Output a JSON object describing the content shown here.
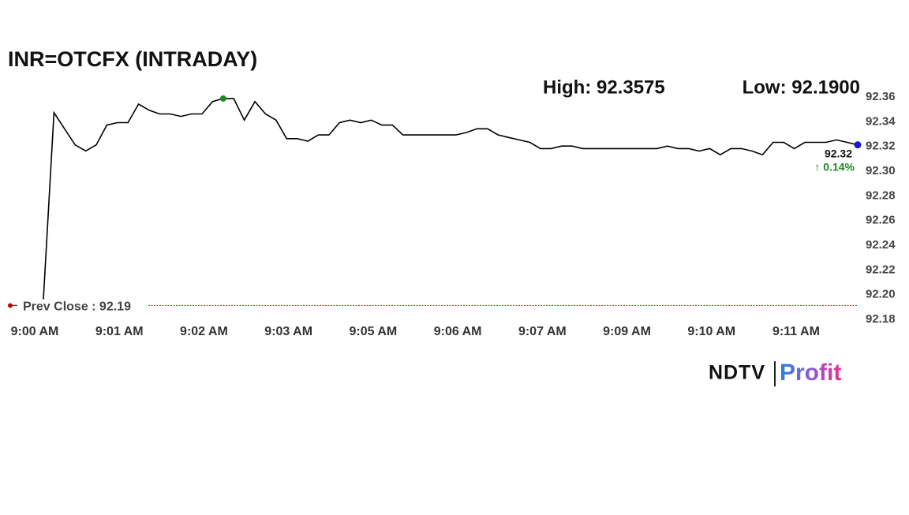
{
  "chart_data": {
    "type": "line",
    "title": "INR=OTCFX (INTRADAY)",
    "high_label": "High: 92.3575",
    "low_label": "Low: 92.1900",
    "categories": [
      "9:00 AM",
      null,
      null,
      null,
      null,
      null,
      null,
      null,
      "9:01 AM",
      null,
      null,
      null,
      null,
      null,
      null,
      null,
      "9:02 AM",
      null,
      null,
      null,
      null,
      null,
      null,
      null,
      "9:03 AM",
      null,
      null,
      null,
      null,
      null,
      null,
      null,
      "9:05 AM",
      null,
      null,
      null,
      null,
      null,
      null,
      null,
      "9:06 AM",
      null,
      null,
      null,
      null,
      null,
      null,
      null,
      "9:07 AM",
      null,
      null,
      null,
      null,
      null,
      null,
      null,
      "9:09 AM",
      null,
      null,
      null,
      null,
      null,
      null,
      null,
      "9:10 AM",
      null,
      null,
      null,
      null,
      null,
      null,
      null,
      "9:11 AM",
      null,
      null,
      null,
      null,
      null
    ],
    "values": [
      92.195,
      92.346,
      92.333,
      92.32,
      92.315,
      92.32,
      92.336,
      92.338,
      92.338,
      92.353,
      92.348,
      92.345,
      92.345,
      92.343,
      92.345,
      92.345,
      92.355,
      92.3575,
      92.3575,
      92.34,
      92.355,
      92.345,
      92.34,
      92.325,
      92.325,
      92.323,
      92.328,
      92.328,
      92.338,
      92.34,
      92.338,
      92.34,
      92.336,
      92.336,
      92.328,
      92.328,
      92.328,
      92.328,
      92.328,
      92.328,
      92.33,
      92.333,
      92.333,
      92.328,
      92.326,
      92.324,
      92.322,
      92.317,
      92.317,
      92.319,
      92.319,
      92.317,
      92.317,
      92.317,
      92.317,
      92.317,
      92.317,
      92.317,
      92.317,
      92.319,
      92.317,
      92.317,
      92.315,
      92.317,
      92.312,
      92.317,
      92.317,
      92.315,
      92.312,
      92.322,
      92.322,
      92.317,
      92.322,
      92.322,
      92.322,
      92.324,
      92.322,
      92.32
    ],
    "color": "#000000",
    "high_index_color": "#1a8a1a",
    "last_point_color": "#1a1acc",
    "ylim": [
      92.18,
      92.36
    ],
    "yticks": [
      92.18,
      {
        "value": 92.2,
        "label": "92.20"
      },
      92.22,
      92.24,
      92.26,
      92.28,
      {
        "value": 92.3,
        "label": "92.30"
      },
      92.32,
      92.34,
      92.36
    ],
    "prev_close": {
      "value": 92.19,
      "label": "Prev Close : 92.19",
      "color": "#cc0000"
    },
    "last_value_label": "92.32",
    "change_label": "↑ 0.14%",
    "grid": false
  },
  "brand": {
    "left": "NDTV",
    "right": "Profit"
  }
}
